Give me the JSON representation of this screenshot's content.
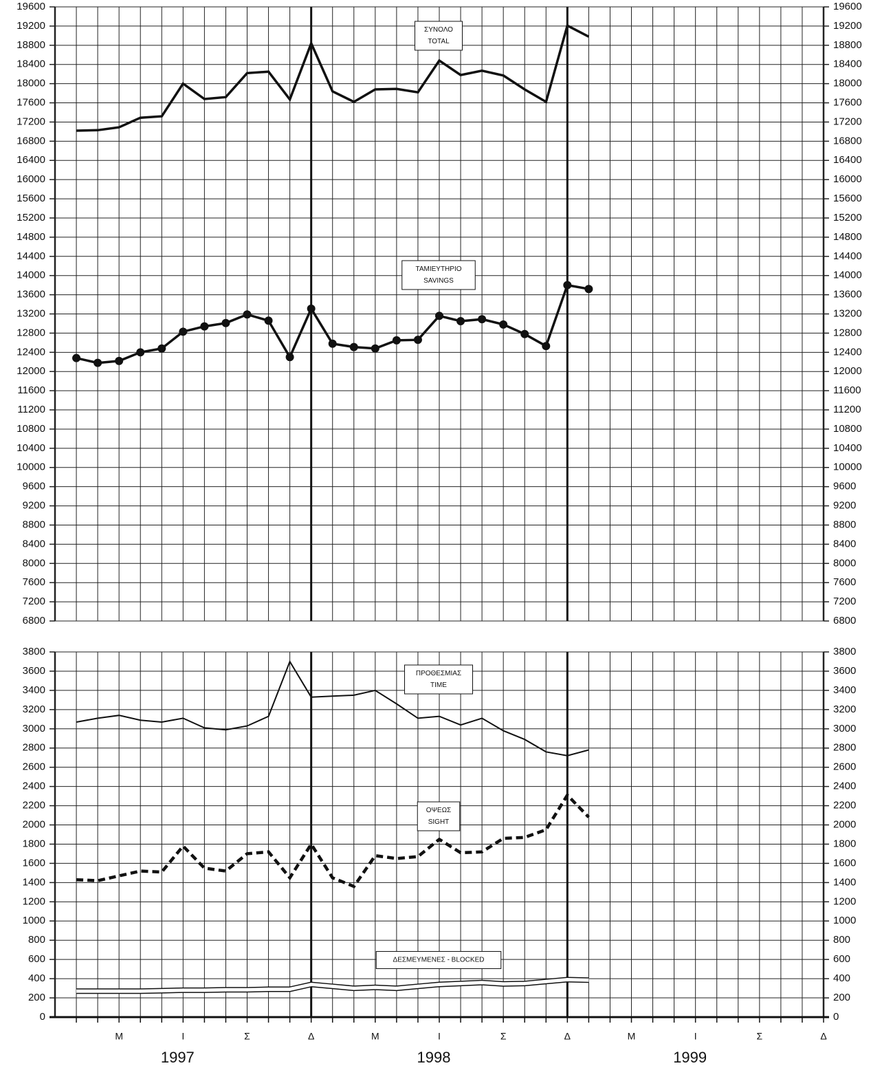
{
  "chart_data": [
    {
      "type": "line",
      "ylim": [
        6800,
        19600
      ],
      "yticks": [
        6800,
        7200,
        7600,
        8000,
        8400,
        8800,
        9200,
        9600,
        10000,
        10400,
        10800,
        11200,
        11600,
        12000,
        12400,
        12800,
        13200,
        13600,
        14000,
        14400,
        14800,
        15200,
        15600,
        16000,
        16400,
        16800,
        17200,
        17600,
        18000,
        18400,
        18800,
        19200,
        19600
      ],
      "grid": true,
      "series": [
        {
          "name": [
            "ΣΥΝΟΛΟ",
            "TOTAL"
          ],
          "color": "#111111",
          "style": "solid",
          "values": [
            17020,
            17030,
            17090,
            17290,
            17320,
            18000,
            17680,
            17720,
            18220,
            18250,
            17670,
            18840,
            17840,
            17620,
            17880,
            17890,
            17820,
            18480,
            18180,
            18270,
            18170,
            17880,
            17620,
            19210,
            18980,
            null,
            null,
            null,
            null,
            null,
            null,
            null,
            null,
            null,
            null,
            null
          ]
        },
        {
          "name": [
            "ΤΑΜΙΕΥΤΗΡΙΟ",
            "SAVINGS"
          ],
          "color": "#111111",
          "style": "markers",
          "values": [
            12280,
            12180,
            12220,
            12400,
            12480,
            12830,
            12940,
            13010,
            13190,
            13060,
            12300,
            13310,
            12580,
            12510,
            12480,
            12650,
            12660,
            13160,
            13050,
            13090,
            12980,
            12780,
            12530,
            13800,
            13720,
            null,
            null,
            null,
            null,
            null,
            null,
            null,
            null,
            null,
            null,
            null
          ]
        }
      ]
    },
    {
      "type": "line",
      "categories": [
        null,
        null,
        "Μ",
        null,
        null,
        "Ι",
        null,
        null,
        "Σ",
        null,
        null,
        "Δ",
        null,
        null,
        "Μ",
        null,
        null,
        "Ι",
        null,
        null,
        "Σ",
        null,
        null,
        "Δ",
        null,
        null,
        "Μ",
        null,
        null,
        "Ι",
        null,
        null,
        "Σ",
        null,
        null,
        "Δ"
      ],
      "years": [
        "1997",
        "1998",
        "1999"
      ],
      "ylim": [
        0,
        3800
      ],
      "yticks": [
        0,
        200,
        400,
        600,
        800,
        1000,
        1200,
        1400,
        1600,
        1800,
        2000,
        2200,
        2400,
        2600,
        2800,
        3000,
        3200,
        3400,
        3600,
        3800
      ],
      "grid": true,
      "series": [
        {
          "name": [
            "ΠΡΟΘΕΣΜΙΑΣ",
            "TIME"
          ],
          "color": "#111111",
          "style": "thin",
          "values": [
            3070,
            3110,
            3140,
            3090,
            3070,
            3110,
            3010,
            2990,
            3030,
            3130,
            3700,
            3330,
            3340,
            3350,
            3400,
            3260,
            3110,
            3130,
            3040,
            3110,
            2980,
            2890,
            2760,
            2720,
            2780,
            null,
            null,
            null,
            null,
            null,
            null,
            null,
            null,
            null,
            null,
            null
          ]
        },
        {
          "name": [
            "ΟΨΕΩΣ",
            "SIGHT"
          ],
          "color": "#111111",
          "style": "dashed",
          "values": [
            1430,
            1420,
            1470,
            1520,
            1510,
            1780,
            1550,
            1520,
            1700,
            1720,
            1450,
            1800,
            1450,
            1360,
            1680,
            1650,
            1670,
            1850,
            1710,
            1720,
            1860,
            1870,
            1950,
            2310,
            2080,
            null,
            null,
            null,
            null,
            null,
            null,
            null,
            null,
            null,
            null,
            null
          ]
        },
        {
          "name": [
            "ΔΕΣΜΕΥΜΕΝΕΣ - BLOCKED"
          ],
          "color": "#111111",
          "style": "double",
          "values": [
            270,
            270,
            270,
            270,
            275,
            280,
            280,
            285,
            285,
            290,
            290,
            340,
            320,
            300,
            310,
            300,
            320,
            340,
            350,
            360,
            345,
            350,
            370,
            390,
            385,
            null,
            null,
            null,
            null,
            null,
            null,
            null,
            null,
            null,
            null,
            null
          ]
        }
      ]
    }
  ]
}
